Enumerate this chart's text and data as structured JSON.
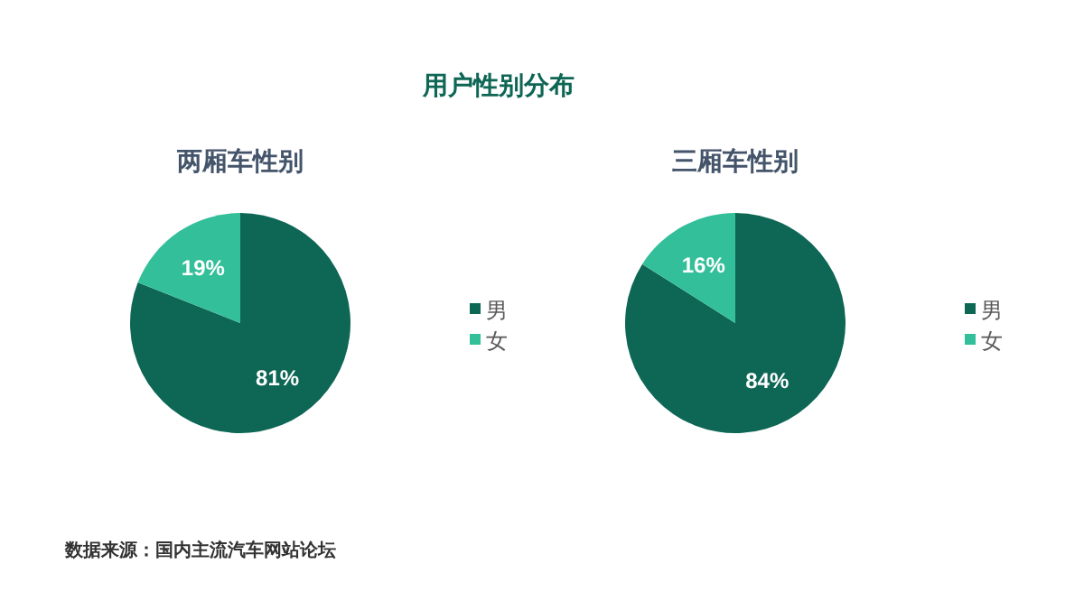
{
  "chart_data": [
    {
      "type": "pie",
      "title": "两厢车性别",
      "categories": [
        "男",
        "女"
      ],
      "values": [
        81,
        19
      ],
      "value_labels": [
        "81%",
        "19%"
      ],
      "colors": [
        "#0e6655",
        "#33bf99"
      ],
      "legend": "right",
      "annotations": [
        "用户性别分布",
        "数据来源：国内主流汽车网站论坛"
      ]
    },
    {
      "type": "pie",
      "title": "三厢车性别",
      "categories": [
        "男",
        "女"
      ],
      "values": [
        84,
        16
      ],
      "value_labels": [
        "84%",
        "16%"
      ],
      "colors": [
        "#0e6655",
        "#33bf99"
      ],
      "legend": "right"
    }
  ]
}
